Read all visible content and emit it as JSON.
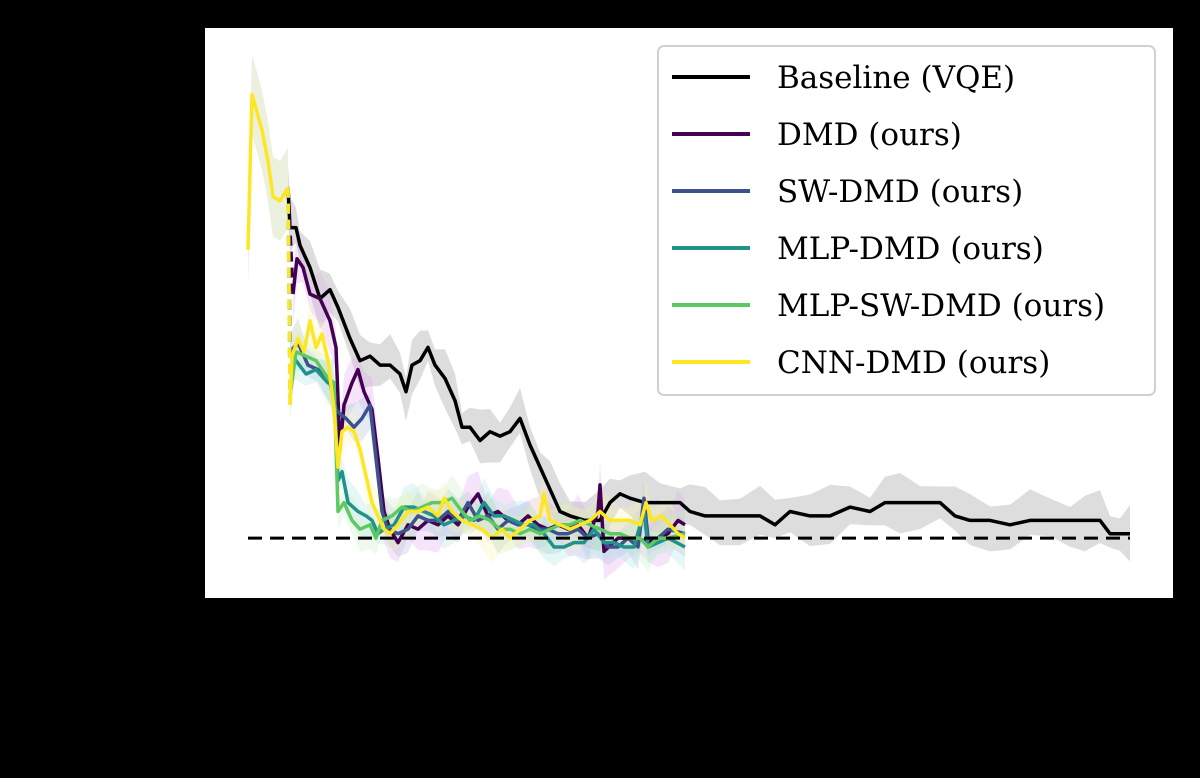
{
  "chart_data": {
    "type": "line",
    "title": "",
    "xlabel": "",
    "ylabel": "",
    "xlim": [
      -43,
      925
    ],
    "ylim": [
      -0.135,
      1.15
    ],
    "grid": false,
    "legend_placement": "top-right",
    "background": "#000000",
    "plot_background": "#ffffff",
    "reference_line": {
      "y": 0,
      "style": "dashed",
      "color": "#000000"
    },
    "shared_start": {
      "color": "#fde725",
      "x": [
        0,
        4,
        14,
        20,
        25,
        32,
        40
      ],
      "y": [
        0.65,
        1.0,
        0.92,
        0.85,
        0.77,
        0.76,
        0.79
      ]
    },
    "series": [
      {
        "name": "Baseline (VQE)",
        "color": "#000000",
        "band_color": "#bbbbbb",
        "band": 0.05,
        "x": [
          40,
          42,
          48,
          52,
          62,
          72,
          82,
          90,
          102,
          112,
          122,
          132,
          142,
          152,
          158,
          164,
          172,
          180,
          187,
          197,
          207,
          214,
          222,
          232,
          242,
          252,
          262,
          272,
          282,
          292,
          302,
          312,
          322,
          337,
          352,
          362,
          372,
          382,
          397,
          412,
          432,
          442,
          457,
          472,
          492,
          512,
          527,
          542,
          562,
          582,
          602,
          622,
          637,
          652,
          672,
          692,
          707,
          722,
          742,
          762,
          782,
          802,
          822,
          837,
          852,
          862,
          872,
          882
        ],
        "y": [
          0.79,
          0.7,
          0.7,
          0.66,
          0.61,
          0.54,
          0.56,
          0.52,
          0.45,
          0.4,
          0.41,
          0.39,
          0.39,
          0.37,
          0.33,
          0.39,
          0.4,
          0.43,
          0.39,
          0.36,
          0.31,
          0.25,
          0.25,
          0.22,
          0.24,
          0.23,
          0.24,
          0.27,
          0.21,
          0.16,
          0.11,
          0.06,
          0.05,
          0.04,
          0.04,
          0.08,
          0.1,
          0.09,
          0.08,
          0.08,
          0.08,
          0.06,
          0.05,
          0.05,
          0.05,
          0.05,
          0.03,
          0.06,
          0.05,
          0.05,
          0.07,
          0.06,
          0.08,
          0.08,
          0.08,
          0.08,
          0.05,
          0.04,
          0.04,
          0.03,
          0.04,
          0.04,
          0.04,
          0.04,
          0.04,
          0.01,
          0.01,
          0.01
        ]
      },
      {
        "name": "DMD (ours)",
        "color": "#440154",
        "band_color": "#e0a8f0",
        "band": 0.05,
        "x": [
          45,
          49,
          55,
          62,
          72,
          82,
          88,
          92,
          96,
          104,
          110,
          116,
          124,
          130,
          136,
          142,
          150,
          160,
          170,
          180,
          190,
          200,
          210,
          220,
          230,
          240,
          250,
          260,
          270,
          280,
          290,
          300,
          310,
          320,
          330,
          340,
          350,
          352,
          356,
          370,
          380,
          390,
          400,
          410,
          420,
          430,
          437
        ],
        "y": [
          0.55,
          0.63,
          0.61,
          0.55,
          0.54,
          0.49,
          0.43,
          0.2,
          0.3,
          0.35,
          0.38,
          0.33,
          0.29,
          0.18,
          0.06,
          0.02,
          -0.01,
          0.03,
          0.02,
          0.04,
          0.03,
          0.05,
          0.03,
          0.07,
          0.1,
          0.05,
          0.06,
          0.04,
          0.03,
          0.05,
          0.03,
          0.02,
          0.03,
          0.02,
          0.03,
          0.0,
          0.06,
          0.12,
          -0.03,
          0.0,
          0.0,
          0.0,
          -0.01,
          0.0,
          0.01,
          0.04,
          0.03
        ]
      },
      {
        "name": "SW-DMD (ours)",
        "color": "#3b528b",
        "band_color": "#aab8dd",
        "band": 0.04,
        "x": [
          42,
          50,
          60,
          70,
          82,
          88,
          92,
          98,
          106,
          114,
          122,
          128,
          134,
          140,
          150,
          160,
          170,
          180,
          190,
          200,
          210,
          220,
          230,
          240,
          250,
          260,
          270,
          280,
          290,
          300,
          310,
          320,
          330,
          340,
          350,
          360,
          370,
          380,
          390,
          396,
          400,
          410,
          420,
          437
        ],
        "y": [
          0.42,
          0.44,
          0.39,
          0.38,
          0.35,
          0.29,
          0.28,
          0.27,
          0.25,
          0.27,
          0.3,
          0.18,
          0.06,
          0.02,
          0.01,
          0.02,
          0.05,
          0.04,
          0.04,
          0.06,
          0.04,
          0.08,
          0.04,
          0.05,
          0.02,
          0.04,
          0.03,
          0.03,
          0.02,
          0.02,
          0.01,
          0.01,
          0.02,
          0.0,
          0.01,
          -0.02,
          -0.02,
          0.0,
          -0.02,
          0.09,
          0.0,
          0.0,
          0.02,
          0.01
        ]
      },
      {
        "name": "MLP-DMD (ours)",
        "color": "#21918c",
        "band_color": "#a8e6e3",
        "band": 0.04,
        "x": [
          42,
          48,
          58,
          68,
          80,
          86,
          90,
          94,
          100,
          110,
          118,
          124,
          130,
          136,
          146,
          156,
          166,
          176,
          186,
          196,
          206,
          216,
          226,
          236,
          246,
          256,
          266,
          276,
          286,
          296,
          306,
          316,
          326,
          336,
          346,
          356,
          366,
          376,
          386,
          396,
          400,
          410,
          420,
          437
        ],
        "y": [
          0.42,
          0.4,
          0.37,
          0.38,
          0.35,
          0.35,
          0.13,
          0.15,
          0.08,
          0.06,
          0.05,
          0.04,
          0.01,
          0.02,
          0.03,
          0.07,
          0.07,
          0.06,
          0.05,
          0.03,
          0.04,
          0.05,
          0.04,
          0.08,
          0.05,
          0.05,
          0.04,
          0.03,
          0.03,
          0.01,
          -0.02,
          -0.02,
          -0.01,
          -0.01,
          0.02,
          -0.01,
          -0.01,
          -0.02,
          -0.02,
          0.06,
          -0.02,
          -0.01,
          0.0,
          -0.02
        ]
      },
      {
        "name": "MLP-SW-DMD (ours)",
        "color": "#5ec962",
        "band_color": "#c4eec5",
        "band": 0.04,
        "x": [
          42,
          48,
          58,
          68,
          80,
          86,
          90,
          96,
          104,
          112,
          122,
          128,
          134,
          144,
          154,
          164,
          174,
          184,
          194,
          204,
          214,
          222,
          232,
          242,
          252,
          262,
          272,
          282,
          292,
          302,
          312,
          322,
          332,
          342,
          352,
          362,
          372,
          382,
          392,
          400,
          410,
          420,
          437
        ],
        "y": [
          0.32,
          0.42,
          0.41,
          0.4,
          0.36,
          0.35,
          0.06,
          0.08,
          0.04,
          0.02,
          0.03,
          0.0,
          0.04,
          0.05,
          0.07,
          0.06,
          0.07,
          0.08,
          0.08,
          0.09,
          0.06,
          0.04,
          0.05,
          0.04,
          0.02,
          0.02,
          0.01,
          0.02,
          0.01,
          0.02,
          0.03,
          0.03,
          0.04,
          0.03,
          0.02,
          0.01,
          0.01,
          0.0,
          0.0,
          -0.02,
          0.0,
          0.0,
          0.01
        ]
      },
      {
        "name": "CNN-DMD (ours)",
        "color": "#fde725",
        "band_color": "#fbf3b0",
        "band": 0.04,
        "x": [
          42,
          44,
          50,
          56,
          62,
          68,
          74,
          80,
          86,
          90,
          94,
          100,
          106,
          112,
          118,
          124,
          130,
          136,
          142,
          150,
          160,
          170,
          180,
          190,
          196,
          204,
          214,
          224,
          234,
          244,
          254,
          262,
          272,
          282,
          292,
          296,
          302,
          312,
          322,
          332,
          342,
          352,
          362,
          372,
          382,
          392,
          398,
          404,
          414,
          422,
          430,
          437
        ],
        "y": [
          0.3,
          0.41,
          0.45,
          0.42,
          0.49,
          0.43,
          0.46,
          0.4,
          0.29,
          0.16,
          0.24,
          0.25,
          0.24,
          0.2,
          0.14,
          0.08,
          0.05,
          0.02,
          0.01,
          0.03,
          0.06,
          0.06,
          0.07,
          0.05,
          0.09,
          0.06,
          0.04,
          0.03,
          0.02,
          0.0,
          0.02,
          0.0,
          0.02,
          0.04,
          0.05,
          0.1,
          0.04,
          0.03,
          0.02,
          0.03,
          0.04,
          0.06,
          0.04,
          0.04,
          0.04,
          0.03,
          0.08,
          0.04,
          0.05,
          0.03,
          0.01,
          0.0
        ]
      }
    ],
    "legend": [
      {
        "label": "Baseline (VQE)",
        "color": "#000000"
      },
      {
        "label": "DMD (ours)",
        "color": "#440154"
      },
      {
        "label": "SW-DMD (ours)",
        "color": "#3b528b"
      },
      {
        "label": "MLP-DMD (ours)",
        "color": "#21918c"
      },
      {
        "label": "MLP-SW-DMD (ours)",
        "color": "#5ec962"
      },
      {
        "label": "CNN-DMD (ours)",
        "color": "#fde725"
      }
    ]
  }
}
